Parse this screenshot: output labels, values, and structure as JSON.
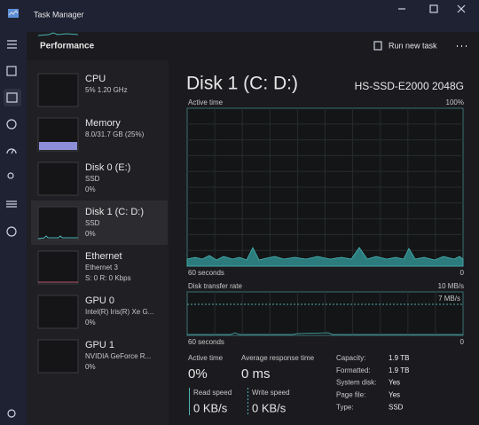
{
  "window": {
    "title": "Task Manager"
  },
  "header": {
    "title": "Performance",
    "action": "Run new task"
  },
  "sidebar": [
    {
      "name": "CPU",
      "details": [
        "5% 1.20 GHz"
      ]
    },
    {
      "name": "Memory",
      "details": [
        "8.0/31.7 GB (25%)"
      ]
    },
    {
      "name": "Disk 0 (E:)",
      "details": [
        "SSD",
        "0%"
      ]
    },
    {
      "name": "Disk 1 (C: D:)",
      "details": [
        "SSD",
        "0%"
      ]
    },
    {
      "name": "Ethernet",
      "details": [
        "Ethernet 3",
        "S: 0 R: 0 Kbps"
      ]
    },
    {
      "name": "GPU 0",
      "details": [
        "Intel(R) Iris(R) Xe G...",
        "0%"
      ]
    },
    {
      "name": "GPU 1",
      "details": [
        "NVIDIA GeForce R...",
        "0%"
      ]
    }
  ],
  "detail": {
    "title": "Disk 1 (C: D:)",
    "model": "HS-SSD-E2000 2048G",
    "charts": [
      {
        "label": "Active time",
        "max": "100%",
        "time_span": "60 seconds",
        "min": "0"
      },
      {
        "label": "Disk transfer rate",
        "max": "10 MB/s",
        "time_span": "60 seconds",
        "min": "0",
        "marker": "7 MB/s"
      }
    ],
    "stats": [
      {
        "label": "Active time",
        "value": "0%"
      },
      {
        "label": "Average response time",
        "value": "0 ms"
      }
    ],
    "speeds": [
      {
        "label": "Read speed",
        "value": "0 KB/s"
      },
      {
        "label": "Write speed",
        "value": "0 KB/s"
      }
    ],
    "properties": [
      {
        "label": "Capacity:",
        "value": "1.9 TB"
      },
      {
        "label": "Formatted:",
        "value": "1.9 TB"
      },
      {
        "label": "System disk:",
        "value": "Yes"
      },
      {
        "label": "Page file:",
        "value": "Yes"
      },
      {
        "label": "Type:",
        "value": "SSD"
      }
    ]
  }
}
